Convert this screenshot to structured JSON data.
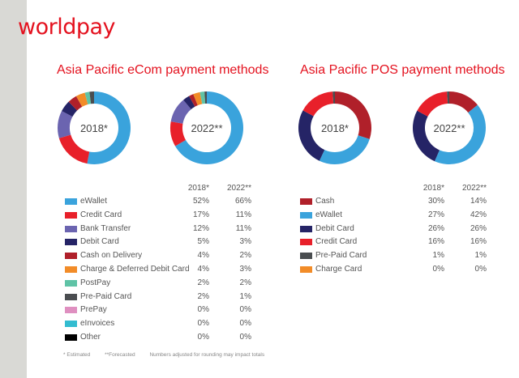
{
  "logo": "worldpay",
  "footnotes": [
    "* Estimated",
    "**Forecasted",
    "Numbers adjusted for rounding may impact totals"
  ],
  "colors": {
    "brand": "#e4121f"
  },
  "chart_data": [
    {
      "type": "pie",
      "donut": true,
      "title": "Asia Pacific eCom payment methods",
      "columns": [
        "2018*",
        "2022**"
      ],
      "categories": [
        "eWallet",
        "Credit Card",
        "Bank Transfer",
        "Debit Card",
        "Cash on Delivery",
        "Charge & Deferred Debit Card",
        "PostPay",
        "Pre-Paid Card",
        "PrePay",
        "eInvoices",
        "Other"
      ],
      "colors": [
        "#3aa3dc",
        "#e8202a",
        "#6b64b0",
        "#252466",
        "#b0202a",
        "#f28c28",
        "#5fc3a6",
        "#4a4d50",
        "#df8fc0",
        "#33bcd0",
        "#000000"
      ],
      "series": [
        {
          "name": "2018*",
          "values": [
            52,
            17,
            12,
            5,
            4,
            4,
            2,
            2,
            0,
            0,
            0
          ]
        },
        {
          "name": "2022**",
          "values": [
            66,
            11,
            11,
            3,
            2,
            3,
            2,
            1,
            0,
            0,
            0
          ]
        }
      ]
    },
    {
      "type": "pie",
      "donut": true,
      "title": "Asia Pacific POS payment methods",
      "columns": [
        "2018*",
        "2022**"
      ],
      "categories": [
        "Cash",
        "eWallet",
        "Debit Card",
        "Credit Card",
        "Pre-Paid Card",
        "Charge Card"
      ],
      "colors": [
        "#b0202a",
        "#3aa3dc",
        "#252466",
        "#e8202a",
        "#4a4d50",
        "#f28c28"
      ],
      "series": [
        {
          "name": "2018*",
          "values": [
            30,
            27,
            26,
            16,
            1,
            0
          ]
        },
        {
          "name": "2022**",
          "values": [
            14,
            42,
            26,
            16,
            1,
            0
          ]
        }
      ]
    }
  ]
}
